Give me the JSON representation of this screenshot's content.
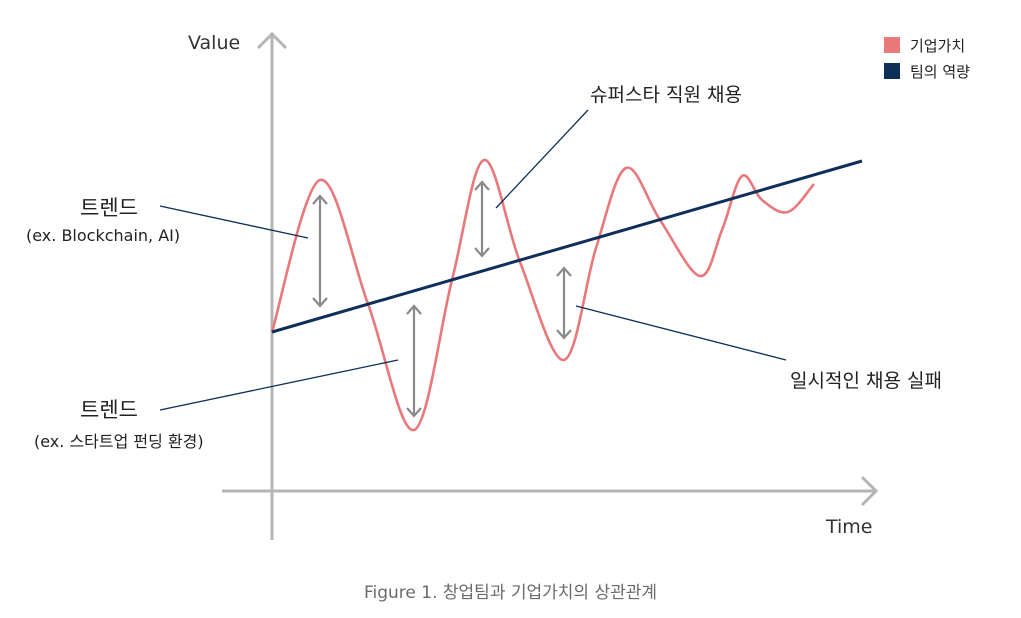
{
  "axes": {
    "y_label": "Value",
    "x_label": "Time"
  },
  "legend": [
    {
      "label": "기업가치",
      "color": "#e8787a"
    },
    {
      "label": "팀의 역량",
      "color": "#0d2f5a"
    }
  ],
  "annotations": {
    "superstar": "슈퍼스타 직원 채용",
    "trend_up_title": "트렌드",
    "trend_up_example": "(ex. Blockchain, AI)",
    "trend_down_title": "트렌드",
    "trend_down_example": "(ex. 스타트업 펀딩 환경)",
    "hiring_fail": "일시적인 채용 실패"
  },
  "caption": "Figure 1. 창업팀과 기업가치의 상관관계",
  "colors": {
    "axis": "#b5b5b5",
    "company_value": "#e8787a",
    "team_capability": "#0d2f5a",
    "arrow": "#8a8a8a",
    "leader": "#0d2f5a"
  }
}
